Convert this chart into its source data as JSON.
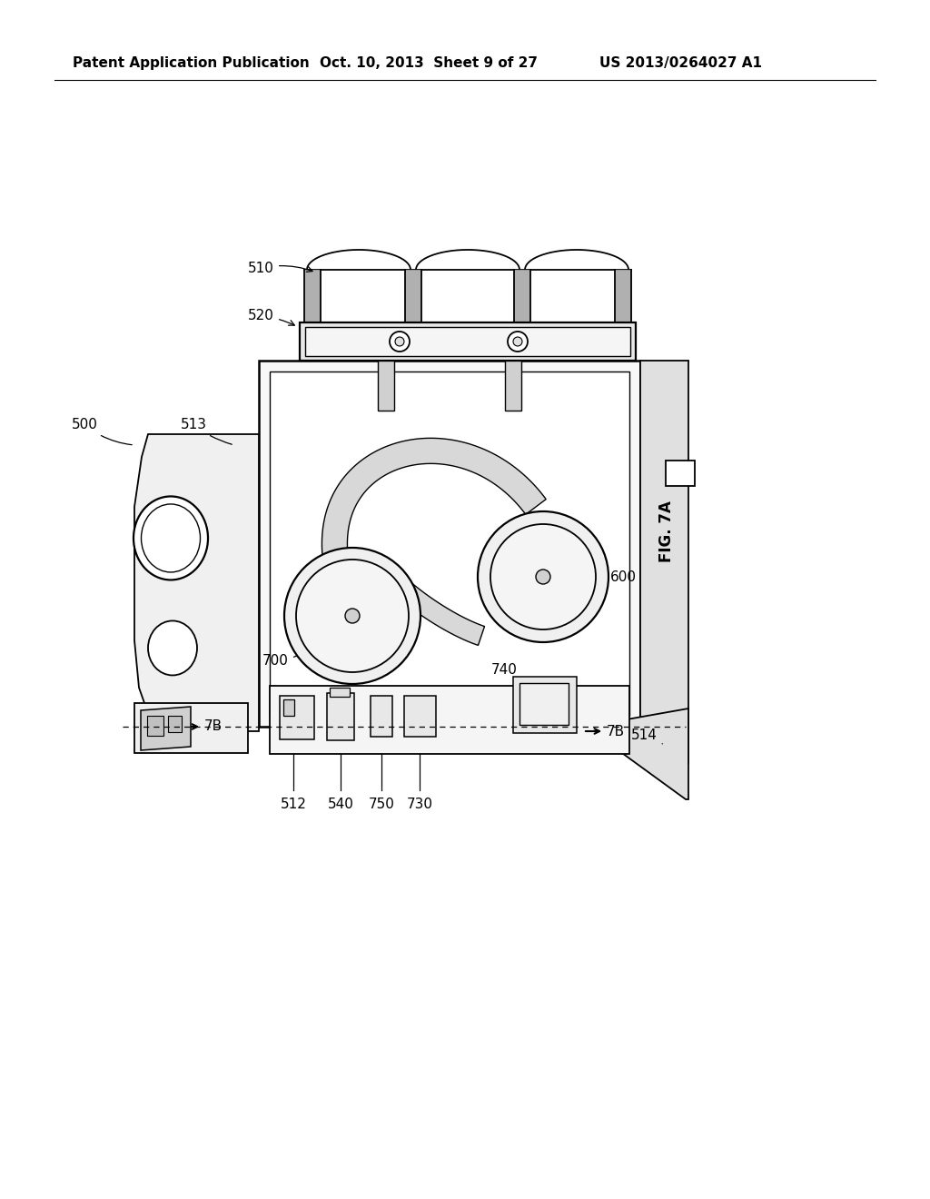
{
  "background_color": "#ffffff",
  "header_left": "Patent Application Publication",
  "header_center": "Oct. 10, 2013  Sheet 9 of 27",
  "header_right": "US 2013/0264027 A1",
  "figure_label": "FIG. 7A",
  "line_color": "#000000",
  "text_color": "#000000",
  "lw": 1.3,
  "header_fontsize": 11,
  "label_fontsize": 11,
  "fig_label_fontsize": 12
}
